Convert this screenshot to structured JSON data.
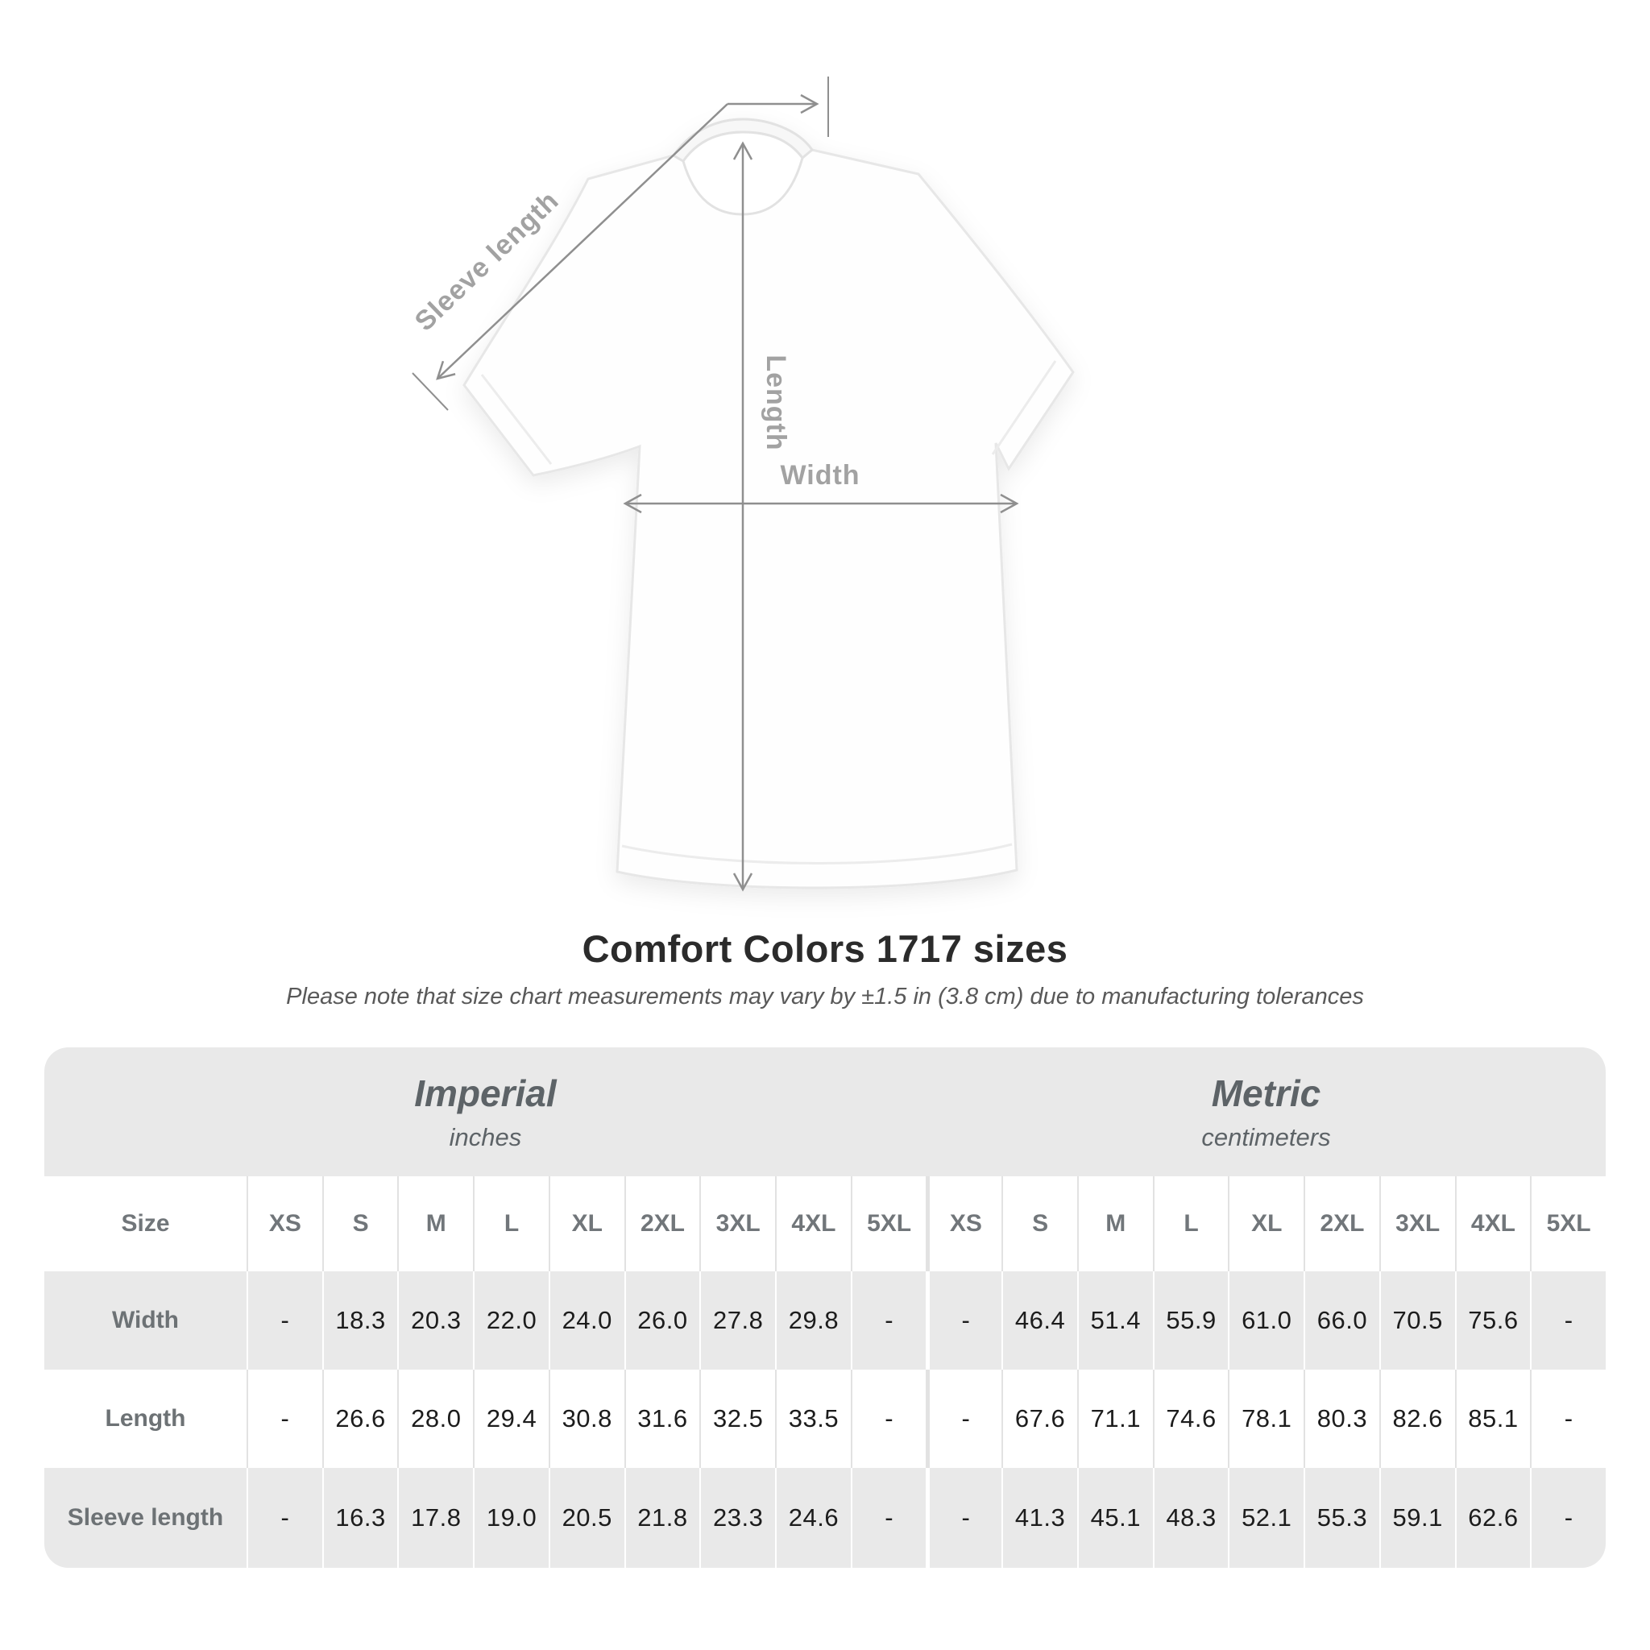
{
  "diagram": {
    "labels": {
      "sleeve": "Sleeve length",
      "length": "Length",
      "width": "Width"
    },
    "colors": {
      "measure_line": "#8f8f8f",
      "measure_label": "#a2a2a2",
      "shirt_outline": "#e7e7e7"
    }
  },
  "heading": {
    "title": "Comfort Colors 1717 sizes",
    "subtitle": "Please note that size chart measurements may vary by ±1.5 in (3.8 cm) due to manufacturing tolerances"
  },
  "table": {
    "corner_label": "Size",
    "groups": [
      {
        "label": "Imperial",
        "sublabel": "inches"
      },
      {
        "label": "Metric",
        "sublabel": "centimeters"
      }
    ],
    "sizes": [
      "XS",
      "S",
      "M",
      "L",
      "XL",
      "2XL",
      "3XL",
      "4XL",
      "5XL"
    ],
    "rows": [
      {
        "label": "Width",
        "imperial": [
          "-",
          "18.3",
          "20.3",
          "22.0",
          "24.0",
          "26.0",
          "27.8",
          "29.8",
          "-"
        ],
        "metric": [
          "-",
          "46.4",
          "51.4",
          "55.9",
          "61.0",
          "66.0",
          "70.5",
          "75.6",
          "-"
        ]
      },
      {
        "label": "Length",
        "imperial": [
          "-",
          "26.6",
          "28.0",
          "29.4",
          "30.8",
          "31.6",
          "32.5",
          "33.5",
          "-"
        ],
        "metric": [
          "-",
          "67.6",
          "71.1",
          "74.6",
          "78.1",
          "80.3",
          "82.6",
          "85.1",
          "-"
        ]
      },
      {
        "label": "Sleeve length",
        "imperial": [
          "-",
          "16.3",
          "17.8",
          "19.0",
          "20.5",
          "21.8",
          "23.3",
          "24.6",
          "-"
        ],
        "metric": [
          "-",
          "41.3",
          "45.1",
          "48.3",
          "52.1",
          "55.3",
          "59.1",
          "62.6",
          "-"
        ]
      }
    ],
    "colors": {
      "band": "#e9e9e9",
      "label": "#6d7275",
      "value": "#1c1c1c"
    }
  }
}
